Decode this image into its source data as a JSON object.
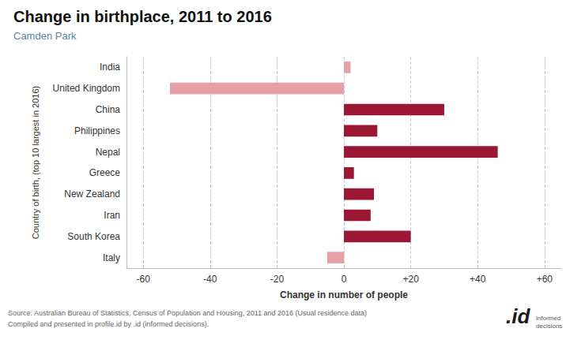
{
  "chart_data": {
    "type": "bar",
    "orientation": "horizontal",
    "title": "Change in birthplace, 2011 to 2016",
    "subtitle": "Camden Park",
    "categories": [
      "India",
      "United Kingdom",
      "China",
      "Philippines",
      "Nepal",
      "Greece",
      "New Zealand",
      "Iran",
      "South Korea",
      "Italy"
    ],
    "values": [
      2,
      -52,
      30,
      10,
      46,
      3,
      9,
      8,
      20,
      -5
    ],
    "colors": [
      "#e8a0a8",
      "#e8a0a8",
      "#9b1733",
      "#9b1733",
      "#9b1733",
      "#9b1733",
      "#9b1733",
      "#9b1733",
      "#9b1733",
      "#e8a0a8"
    ],
    "xlabel": "Change in number of people",
    "ylabel": "Country of birth, (top 10 largest in 2016)",
    "xlim": [
      -65,
      65
    ],
    "xticks": [
      -60,
      -40,
      -20,
      0,
      {
        "value": 20,
        "label": "+20"
      },
      {
        "value": 40,
        "label": "+40"
      },
      {
        "value": 60,
        "label": "+60"
      }
    ],
    "grid": true,
    "annotations": [
      "Source: Australian Bureau of Statistics, Census of Population and Housing, 2011 and 2016 (Usual residence data)",
      "Compiled and presented in profile.id by .id (informed decisions).",
      ".id",
      "informed\ndecisions"
    ]
  }
}
